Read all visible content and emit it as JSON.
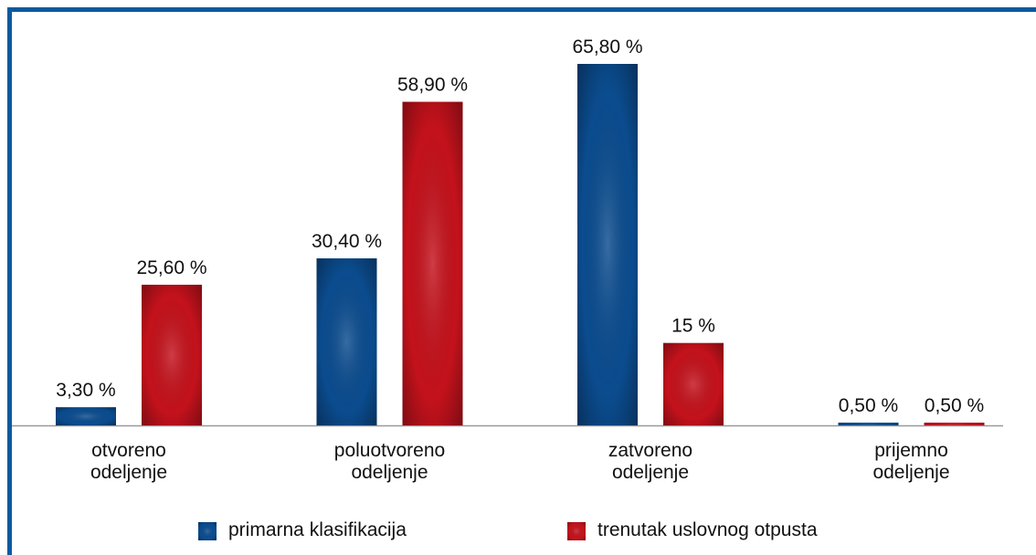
{
  "chart_data": {
    "type": "bar",
    "categories": [
      "otvoreno odeljenje",
      "poluotvoreno odeljenje",
      "zatvoreno odeljenje",
      "prijemno odeljenje"
    ],
    "series": [
      {
        "name": "primarna klasifikacija",
        "color": "#0b4c8f",
        "values": [
          3.3,
          30.4,
          65.8,
          0.5
        ],
        "value_labels": [
          "3,30 %",
          "30,40 %",
          "65,80 %",
          "0,50 %"
        ]
      },
      {
        "name": "trenutak uslovnog otpusta",
        "color": "#c4121c",
        "values": [
          25.6,
          58.9,
          15,
          0.5
        ],
        "value_labels": [
          "25,60 %",
          "58,90 %",
          "15 %",
          "0,50 %"
        ]
      }
    ]
  }
}
